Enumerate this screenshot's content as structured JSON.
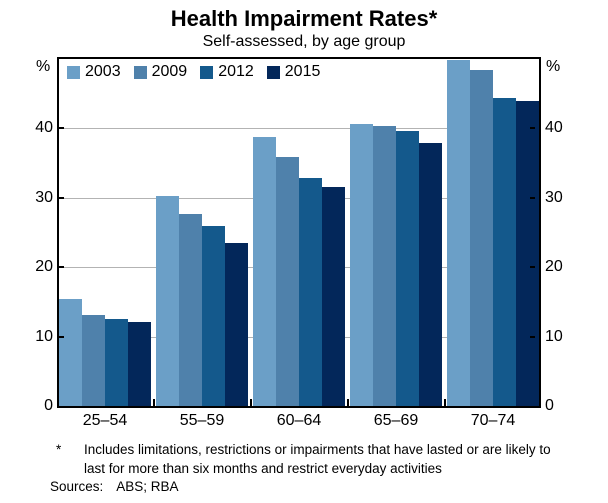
{
  "title": "Health Impairment Rates*",
  "subtitle": "Self-assessed, by age group",
  "axis": {
    "unit_left": "%",
    "unit_right": "%"
  },
  "chart_data": {
    "type": "bar",
    "title": "Health Impairment Rates*",
    "subtitle": "Self-assessed, by age group",
    "categories": [
      "25–54",
      "55–59",
      "60–64",
      "65–69",
      "70–74"
    ],
    "series": [
      {
        "name": "2003",
        "color": "#6B9FC7",
        "values": [
          15.4,
          30.3,
          38.8,
          40.7,
          49.8
        ]
      },
      {
        "name": "2009",
        "color": "#4F81AB",
        "values": [
          13.1,
          27.7,
          35.9,
          40.3,
          48.4
        ]
      },
      {
        "name": "2012",
        "color": "#14598C",
        "values": [
          12.5,
          25.9,
          32.8,
          39.6,
          44.4
        ]
      },
      {
        "name": "2015",
        "color": "#03275A",
        "values": [
          12.1,
          23.5,
          31.6,
          37.9,
          44.0
        ]
      }
    ],
    "ylim": [
      0,
      50
    ],
    "yticks": [
      0,
      10,
      20,
      30,
      40
    ],
    "ylabel_left": "%",
    "ylabel_right": "%",
    "grid": "horizontal",
    "gridline_color": "#B3B3B3",
    "legend_position": "top-left"
  },
  "footnote": {
    "marker": "*",
    "text": "Includes limitations, restrictions or impairments that have lasted or are likely to last for more than six months and restrict everyday activities"
  },
  "sources": {
    "label": "Sources:",
    "text": "ABS; RBA"
  }
}
